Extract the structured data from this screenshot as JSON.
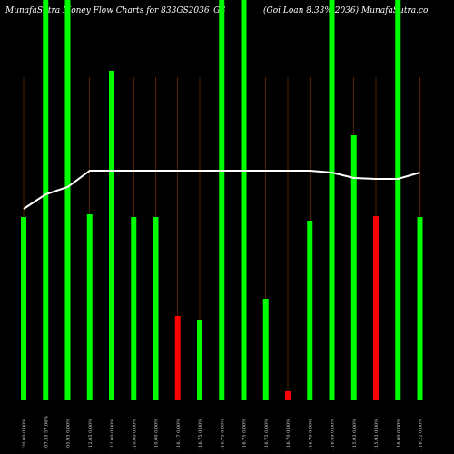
{
  "chart_data": {
    "type": "bar",
    "title": "MunafaSutra  Money Flow  Charts for 833GS2036_GS",
    "subtitle": "(Goi   Loan   8.33%  2036)  MunafaSutra.co",
    "categories": [
      "120.00 0.00%",
      "107.35 57.06%",
      "105.93 0.00%",
      "112.05 0.00%",
      "112.00 0.00%",
      "110.00 0.00%",
      "110.00 0.00%",
      "116.17 0.00%",
      "116.75 0.00%",
      "116.75 0.00%",
      "116.75 0.00%",
      "116.75 0.00%",
      "116.70 0.00%",
      "116.70 0.00%",
      "116.49 0.00%",
      "115.93 0.00%",
      "115.93 0.00%",
      "116.00 0.00%",
      "116.22 0.00%"
    ],
    "values": [
      201,
      440,
      440,
      204,
      362,
      201,
      201,
      92,
      88,
      440,
      440,
      111,
      9,
      197,
      440,
      291,
      202,
      440,
      201
    ],
    "colors": [
      "#00ff00",
      "#00ff00",
      "#00ff00",
      "#00ff00",
      "#00ff00",
      "#00ff00",
      "#00ff00",
      "#ff0000",
      "#00ff00",
      "#00ff00",
      "#00ff00",
      "#00ff00",
      "#ff0000",
      "#00ff00",
      "#00ff00",
      "#00ff00",
      "#ff0000",
      "#00ff00",
      "#00ff00"
    ],
    "line": {
      "color": "#ffffff",
      "values": [
        210,
        226,
        234,
        252,
        252,
        252,
        252,
        252,
        252,
        252,
        252,
        252,
        252,
        252,
        250,
        244,
        243,
        243,
        250
      ]
    },
    "ylim": [
      0,
      440
    ]
  }
}
